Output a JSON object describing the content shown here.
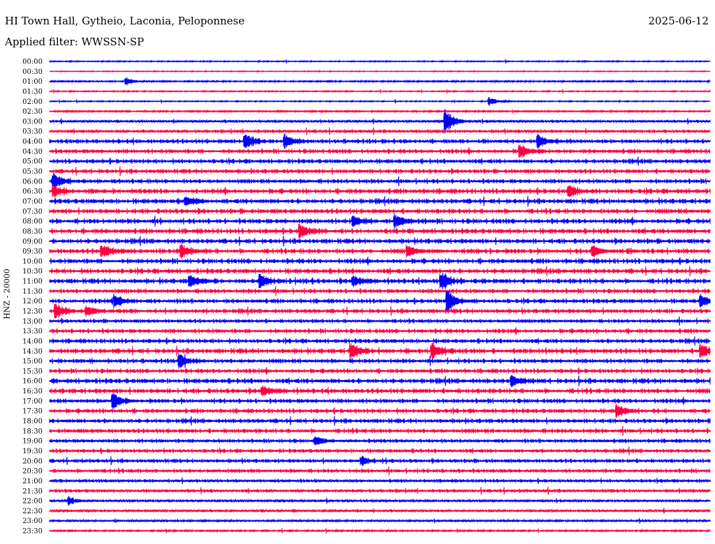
{
  "header": {
    "station": "HI Town Hall, Gytheio, Laconia, Peloponnese",
    "filter": "Applied filter: WWSSN-SP",
    "date": "2025-06-12"
  },
  "chart_data": {
    "type": "line",
    "title": "HI Town Hall, Gytheio, Laconia, Peloponnese",
    "ylabel": "HNZ - 20000",
    "minutes_per_line": 30,
    "colors": [
      "#0000ff",
      "#ff0040"
    ],
    "rows": [
      "00:00",
      "00:30",
      "01:00",
      "01:30",
      "02:00",
      "02:30",
      "03:00",
      "03:30",
      "04:00",
      "04:30",
      "05:00",
      "05:30",
      "06:00",
      "06:30",
      "07:00",
      "07:30",
      "08:00",
      "08:30",
      "09:00",
      "09:30",
      "10:00",
      "10:30",
      "11:00",
      "11:30",
      "12:00",
      "12:30",
      "13:00",
      "13:30",
      "14:00",
      "14:30",
      "15:00",
      "15:30",
      "16:00",
      "16:30",
      "17:00",
      "17:30",
      "18:00",
      "18:30",
      "19:00",
      "19:30",
      "20:00",
      "20:30",
      "21:00",
      "21:30",
      "22:00",
      "22:30",
      "23:00",
      "23:30"
    ],
    "noise_level": [
      0.2,
      0.15,
      0.3,
      0.2,
      0.2,
      0.3,
      0.5,
      0.6,
      0.8,
      0.8,
      0.8,
      0.8,
      0.8,
      0.9,
      0.9,
      0.9,
      0.9,
      0.9,
      0.9,
      0.9,
      0.9,
      0.9,
      0.9,
      0.8,
      0.8,
      0.8,
      0.7,
      0.8,
      0.8,
      0.9,
      0.8,
      0.8,
      0.9,
      0.9,
      0.8,
      0.8,
      0.8,
      0.8,
      0.7,
      0.7,
      0.7,
      0.7,
      0.6,
      0.6,
      0.5,
      0.5,
      0.4,
      0.3
    ],
    "events": [
      {
        "row": "01:00",
        "minute": 3.5,
        "amp": 0.3
      },
      {
        "row": "02:00",
        "minute": 20,
        "amp": 0.3
      },
      {
        "row": "03:00",
        "minute": 18,
        "amp": 1.0
      },
      {
        "row": "04:00",
        "minute": 8.9,
        "amp": 0.6
      },
      {
        "row": "04:00",
        "minute": 10.7,
        "amp": 0.5
      },
      {
        "row": "04:00",
        "minute": 22.2,
        "amp": 0.5
      },
      {
        "row": "04:30",
        "minute": 21.4,
        "amp": 0.5
      },
      {
        "row": "06:00",
        "minute": 0.2,
        "amp": 0.6
      },
      {
        "row": "06:30",
        "minute": 0.2,
        "amp": 0.4
      },
      {
        "row": "06:30",
        "minute": 23.6,
        "amp": 0.4
      },
      {
        "row": "07:00",
        "minute": 6.2,
        "amp": 0.35
      },
      {
        "row": "08:00",
        "minute": 13.8,
        "amp": 0.4
      },
      {
        "row": "08:00",
        "minute": 15.7,
        "amp": 0.5
      },
      {
        "row": "08:30",
        "minute": 11.4,
        "amp": 0.5
      },
      {
        "row": "09:30",
        "minute": 2.4,
        "amp": 0.5
      },
      {
        "row": "09:30",
        "minute": 6,
        "amp": 0.5
      },
      {
        "row": "09:30",
        "minute": 16.3,
        "amp": 0.4
      },
      {
        "row": "09:30",
        "minute": 24.7,
        "amp": 0.4
      },
      {
        "row": "11:00",
        "minute": 6.4,
        "amp": 0.5
      },
      {
        "row": "11:00",
        "minute": 9.6,
        "amp": 0.5
      },
      {
        "row": "11:00",
        "minute": 13.8,
        "amp": 0.4
      },
      {
        "row": "11:00",
        "minute": 17.8,
        "amp": 0.6
      },
      {
        "row": "12:00",
        "minute": 3,
        "amp": 0.5
      },
      {
        "row": "12:00",
        "minute": 18.1,
        "amp": 0.8
      },
      {
        "row": "12:00",
        "minute": 29.6,
        "amp": 0.4
      },
      {
        "row": "12:30",
        "minute": 0.3,
        "amp": 0.6
      },
      {
        "row": "12:30",
        "minute": 1.7,
        "amp": 0.4
      },
      {
        "row": "14:30",
        "minute": 13.7,
        "amp": 0.6
      },
      {
        "row": "14:30",
        "minute": 17.4,
        "amp": 0.6
      },
      {
        "row": "14:30",
        "minute": 29.6,
        "amp": 0.5
      },
      {
        "row": "15:00",
        "minute": 5.9,
        "amp": 0.5
      },
      {
        "row": "16:00",
        "minute": 21,
        "amp": 0.45
      },
      {
        "row": "16:30",
        "minute": 9.7,
        "amp": 0.35
      },
      {
        "row": "17:00",
        "minute": 2.9,
        "amp": 0.6
      },
      {
        "row": "17:30",
        "minute": 25.8,
        "amp": 0.45
      },
      {
        "row": "19:00",
        "minute": 12.1,
        "amp": 0.3
      },
      {
        "row": "20:00",
        "minute": 14.2,
        "amp": 0.3
      },
      {
        "row": "22:00",
        "minute": 0.9,
        "amp": 0.25
      }
    ]
  }
}
